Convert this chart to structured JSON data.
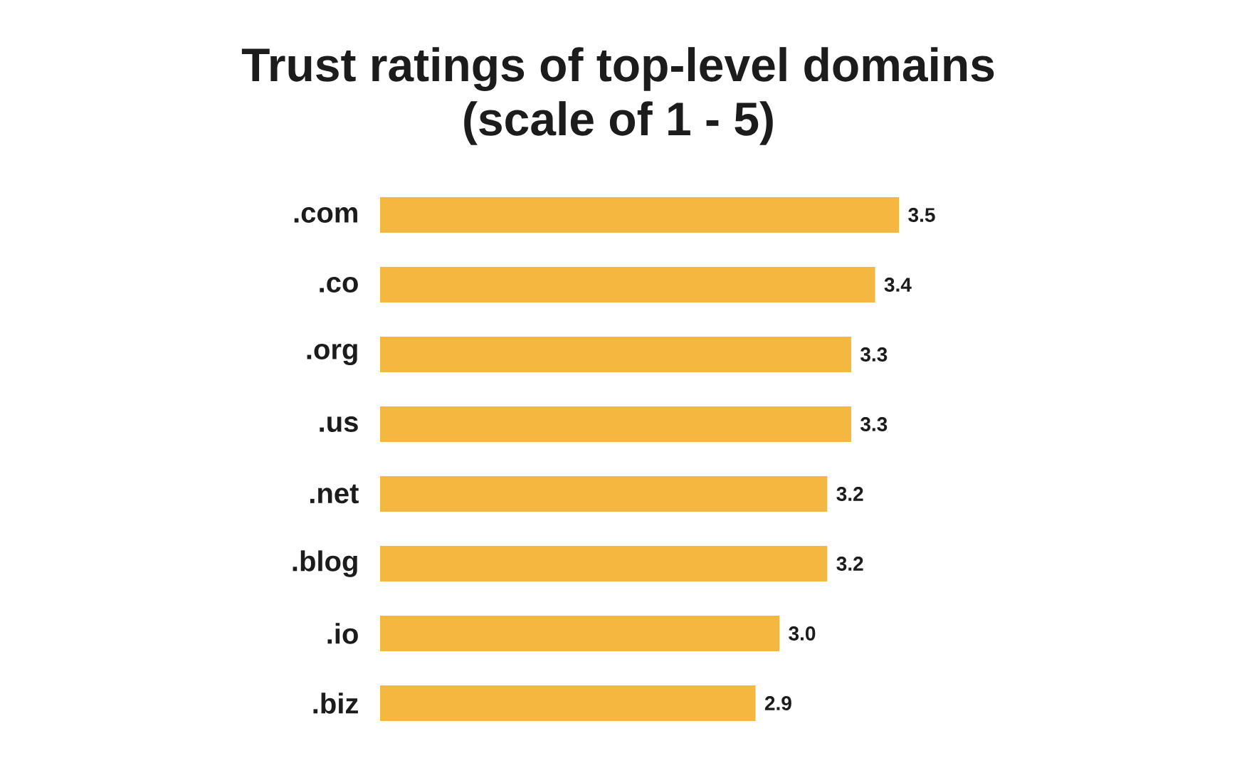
{
  "chart_data": {
    "type": "bar",
    "orientation": "horizontal",
    "title": "Trust ratings of top-level domains",
    "subtitle": "(scale of 1 - 5)",
    "categories": [
      ".com",
      ".co",
      ".org",
      ".us",
      ".net",
      ".blog",
      ".io",
      ".biz"
    ],
    "values": [
      3.5,
      3.4,
      3.3,
      3.3,
      3.2,
      3.2,
      3.0,
      2.9
    ],
    "value_labels": [
      "3.5",
      "3.4",
      "3.3",
      "3.3",
      "3.2",
      "3.2",
      "3.0",
      "2.9"
    ],
    "color": "#f4b740",
    "xlim": [
      1.33,
      3.5
    ],
    "tick_labels": "y"
  }
}
